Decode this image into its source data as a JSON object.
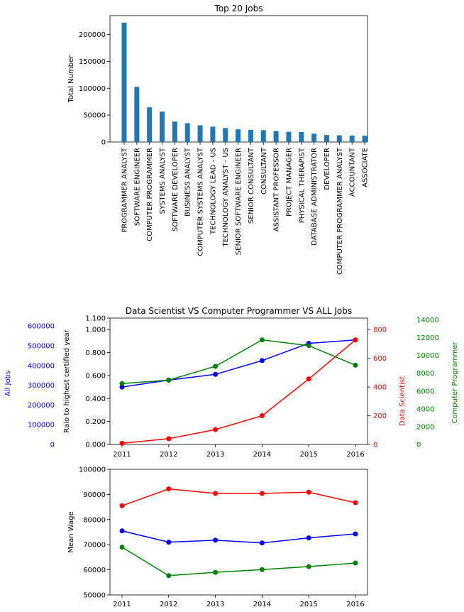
{
  "chart_data": [
    {
      "type": "bar",
      "title": "Top 20 Jobs",
      "xlabel": "",
      "ylabel": "Total Number",
      "ylim": [
        0,
        235000
      ],
      "yticks": [
        "0",
        "50000",
        "100000",
        "150000",
        "200000"
      ],
      "ytick_values": [
        0,
        50000,
        100000,
        150000,
        200000
      ],
      "bar_color": "#1f77b4",
      "categories": [
        "PROGRAMMER ANALYST",
        "SOFTWARE ENGINEER",
        "COMPUTER PROGRAMMER",
        "SYSTEMS ANALYST",
        "SOFTWARE DEVELOPER",
        "BUSINESS ANALYST",
        "COMPUTER SYSTEMS ANALYST",
        "TECHNOLOGY LEAD - US",
        "TECHNOLOGY ANALYST - US",
        "SENIOR SOFTWARE ENGINEER",
        "SENIOR CONSULTANT",
        "CONSULTANT",
        "ASSISTANT PROFESSOR",
        "PROJECT MANAGER",
        "PHYSICAL THERAPIST",
        "DATABASE ADMINISTRATOR",
        "DEVELOPER",
        "COMPUTER PROGRAMMER ANALYST",
        "ACCOUNTANT",
        "ASSOCIATE"
      ],
      "values": [
        222000,
        102500,
        64500,
        56500,
        38000,
        35000,
        31000,
        28500,
        26000,
        23500,
        22500,
        22000,
        20500,
        19000,
        18500,
        15500,
        13000,
        12500,
        12000,
        11500
      ]
    },
    {
      "type": "line",
      "title": "Data Scientist VS Computer Programmer VS ALL Jobs",
      "x": [
        "2011",
        "2012",
        "2013",
        "2014",
        "2015",
        "2016"
      ],
      "grid": false,
      "axes": {
        "primary": {
          "label": "Raio to highest certified year",
          "ylim": [
            0,
            1.1
          ],
          "ticks": [
            "0.000",
            "0.200",
            "0.400",
            "0.600",
            "0.800",
            "1.000",
            "1.100"
          ],
          "tick_values": [
            0,
            0.2,
            0.4,
            0.6,
            0.8,
            1.0,
            1.1
          ],
          "color": "#000000"
        },
        "all_jobs": {
          "label": "All Jobs",
          "ylim": [
            0,
            640000
          ],
          "ticks": [
            "0",
            "100000",
            "200000",
            "300000",
            "400000",
            "500000",
            "600000"
          ],
          "tick_values": [
            0,
            100000,
            200000,
            300000,
            400000,
            500000,
            600000
          ],
          "color": "#0000ff"
        },
        "data_scientist": {
          "label": "Data Scientist",
          "ylim": [
            0,
            880
          ],
          "ticks": [
            "0",
            "200",
            "400",
            "600",
            "800"
          ],
          "tick_values": [
            0,
            200,
            400,
            600,
            800
          ],
          "color": "#ff0000"
        },
        "computer_programmer": {
          "label": "Computer Programmer",
          "ylim": [
            0,
            14200
          ],
          "ticks": [
            "0",
            "2000",
            "4000",
            "6000",
            "8000",
            "10000",
            "12000",
            "14000"
          ],
          "tick_values": [
            0,
            2000,
            4000,
            6000,
            8000,
            10000,
            12000,
            14000
          ],
          "color": "#008000"
        }
      },
      "series": [
        {
          "color": "#0000ff",
          "axis": "primary",
          "values": [
            0.5,
            0.56,
            0.61,
            0.73,
            0.88,
            0.91
          ]
        },
        {
          "color": "#ff0000",
          "axis": "primary",
          "values": [
            0.01,
            0.05,
            0.13,
            0.25,
            0.57,
            0.91
          ]
        },
        {
          "color": "#008000",
          "axis": "primary",
          "values": [
            0.53,
            0.56,
            0.68,
            0.91,
            0.86,
            0.69
          ]
        }
      ]
    },
    {
      "type": "line",
      "title": "",
      "ylabel": "Mean Wage",
      "x": [
        "2011",
        "2012",
        "2013",
        "2014",
        "2015",
        "2016"
      ],
      "ylim": [
        50000,
        100000
      ],
      "yticks": [
        "50000",
        "60000",
        "70000",
        "80000",
        "90000",
        "100000"
      ],
      "ytick_values": [
        50000,
        60000,
        70000,
        80000,
        90000,
        100000
      ],
      "grid": false,
      "series": [
        {
          "color": "#ff0000",
          "values": [
            85500,
            92200,
            90400,
            90400,
            90900,
            86700
          ]
        },
        {
          "color": "#0000ff",
          "values": [
            75500,
            71000,
            71800,
            70700,
            72700,
            74300
          ]
        },
        {
          "color": "#008000",
          "values": [
            69000,
            57700,
            59000,
            60100,
            61300,
            62700
          ]
        }
      ]
    }
  ]
}
